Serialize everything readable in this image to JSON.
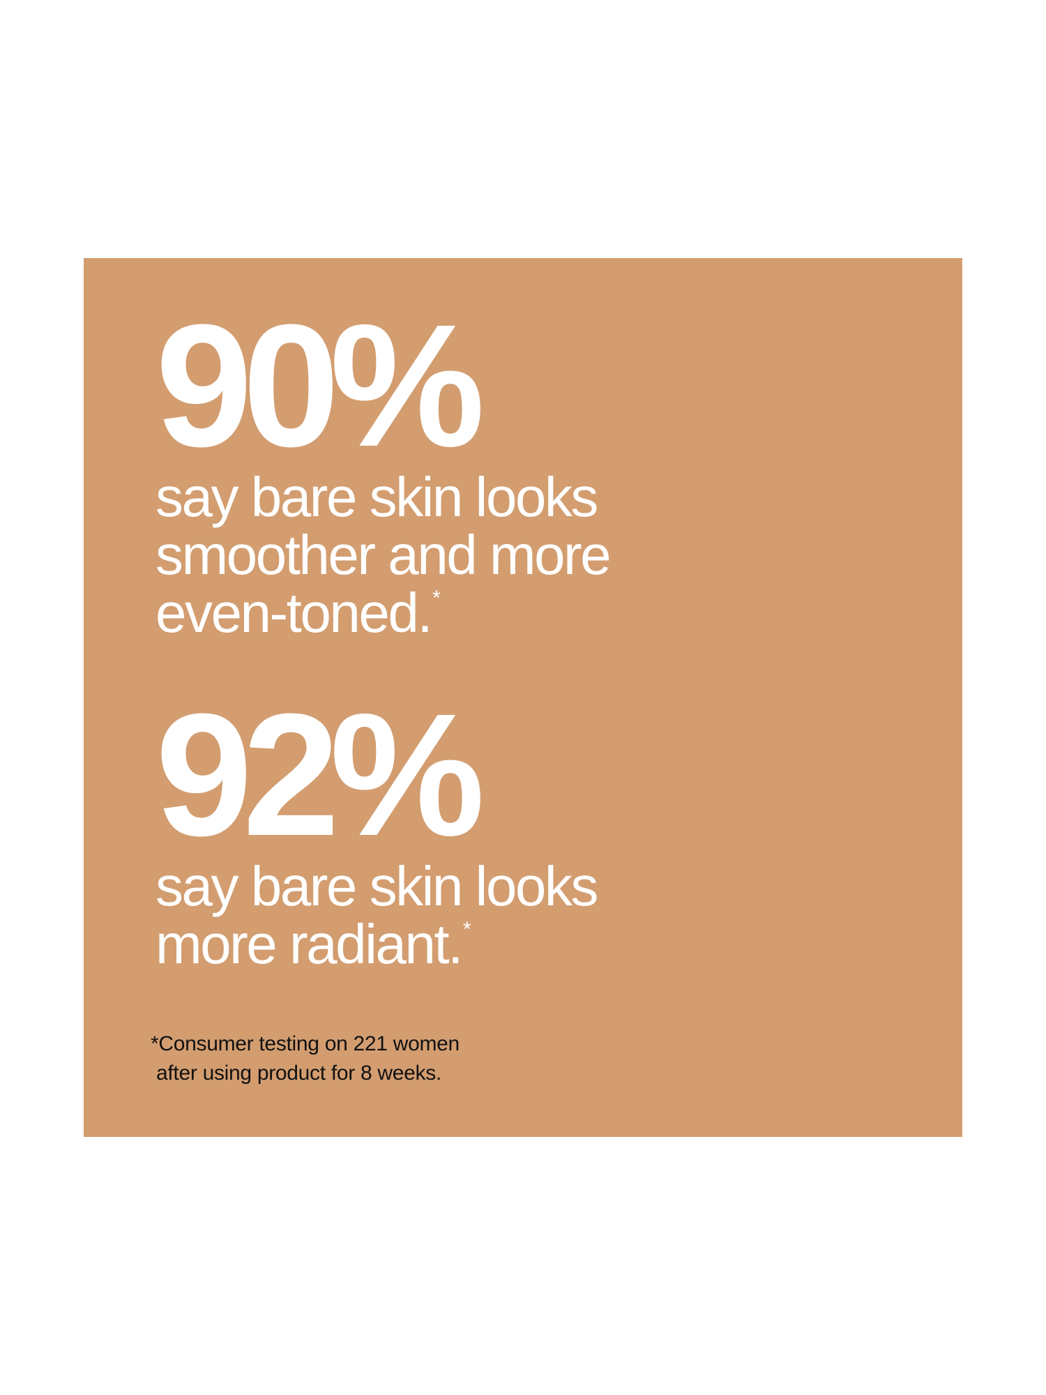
{
  "colors": {
    "panel": "#D39D70",
    "text": "#FFFFFF",
    "footnote": "#111111"
  },
  "stats": [
    {
      "value": "90%",
      "lines": [
        "say bare skin looks",
        "smoother and more",
        "even-toned."
      ],
      "mark": "*"
    },
    {
      "value": "92%",
      "lines": [
        "say bare skin looks",
        "more radiant."
      ],
      "mark": "*"
    }
  ],
  "footnote": [
    "*Consumer testing on 221 women",
    "after using product for 8 weeks."
  ]
}
